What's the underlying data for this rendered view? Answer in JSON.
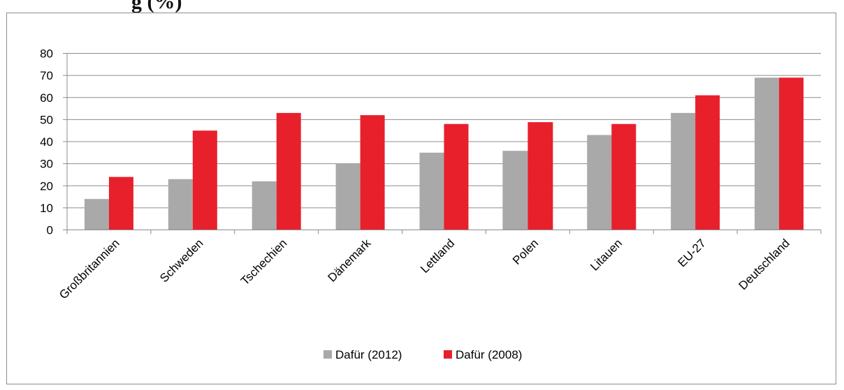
{
  "page": {
    "partial_title": "g (%)"
  },
  "colors": {
    "series_2012": "#a9a9a9",
    "series_2008": "#e8202c",
    "grid": "#8c8c8c"
  },
  "chart_data": {
    "type": "bar",
    "categories": [
      "Großbritannien",
      "Schweden",
      "Tschechien",
      "Dänemark",
      "Lettland",
      "Polen",
      "Litauen",
      "EU-27",
      "Deutschland"
    ],
    "series": [
      {
        "name": "Dafür (2012)",
        "values": [
          14,
          23,
          22,
          30,
          35,
          36,
          43,
          53,
          69
        ]
      },
      {
        "name": "Dafür (2008)",
        "values": [
          24,
          45,
          53,
          52,
          48,
          49,
          48,
          61,
          69
        ]
      }
    ],
    "ylim": [
      0,
      80
    ],
    "yticks": [
      0,
      10,
      20,
      30,
      40,
      50,
      60,
      70,
      80
    ],
    "grid": true,
    "legend_position": "bottom",
    "highlighted_category": "Polen"
  }
}
